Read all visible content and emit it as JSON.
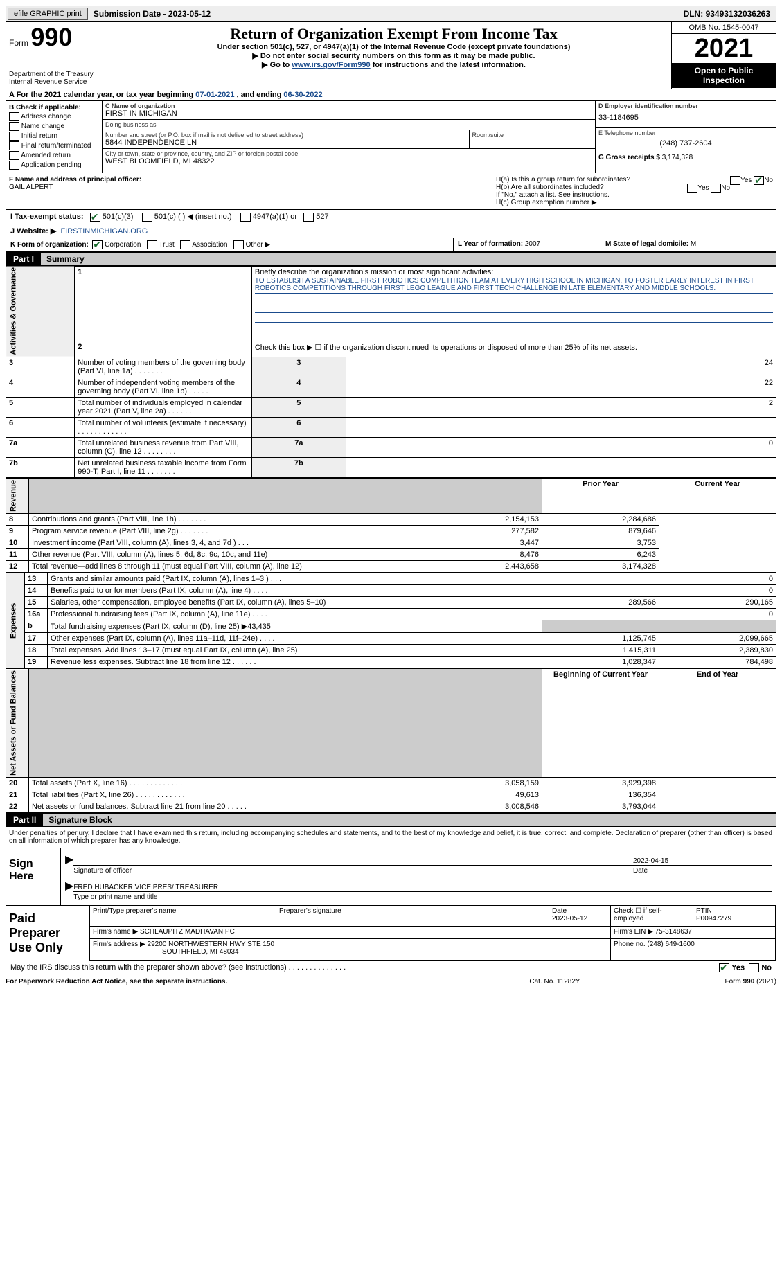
{
  "topbar": {
    "efile": "efile GRAPHIC print",
    "subdate_lbl": "Submission Date - ",
    "subdate": "2023-05-12",
    "dln_lbl": "DLN: ",
    "dln": "93493132036263"
  },
  "header": {
    "form_prefix": "Form",
    "form_no": "990",
    "title": "Return of Organization Exempt From Income Tax",
    "sub1": "Under section 501(c), 527, or 4947(a)(1) of the Internal Revenue Code (except private foundations)",
    "sub2": "▶ Do not enter social security numbers on this form as it may be made public.",
    "sub3a": "▶ Go to ",
    "sub3_link": "www.irs.gov/Form990",
    "sub3b": " for instructions and the latest information.",
    "dept": "Department of the Treasury\nInternal Revenue Service",
    "omb": "OMB No. 1545-0047",
    "year": "2021",
    "open": "Open to Public Inspection"
  },
  "row_a": {
    "text_a": "A For the 2021 calendar year, or tax year beginning ",
    "begin": "07-01-2021",
    "mid": " , and ending ",
    "end": "06-30-2022"
  },
  "col_b": {
    "title": "B Check if applicable:",
    "items": [
      "Address change",
      "Name change",
      "Initial return",
      "Final return/terminated",
      "Amended return",
      "Application pending"
    ]
  },
  "col_c": {
    "name_lbl": "C Name of organization",
    "name": "FIRST IN MICHIGAN",
    "dba_lbl": "Doing business as",
    "dba": "",
    "street_lbl": "Number and street (or P.O. box if mail is not delivered to street address)",
    "room_lbl": "Room/suite",
    "street": "5844 INDEPENDENCE LN",
    "city_lbl": "City or town, state or province, country, and ZIP or foreign postal code",
    "city": "WEST BLOOMFIELD, MI  48322"
  },
  "col_d": {
    "ein_lbl": "D Employer identification number",
    "ein": "33-1184695",
    "phone_lbl": "E Telephone number",
    "phone": "(248) 737-2604",
    "gross_lbl": "G Gross receipts $ ",
    "gross": "3,174,328"
  },
  "row_f": {
    "f_lbl": "F  Name and address of principal officer:",
    "f_val": "GAIL ALPERT",
    "ha": "H(a)  Is this a group return for subordinates?",
    "hb": "H(b)  Are all subordinates included?",
    "hb_note": "If \"No,\" attach a list. See instructions.",
    "hc": "H(c)  Group exemption number ▶",
    "yes": "Yes",
    "no": "No"
  },
  "row_i": {
    "lbl": "I   Tax-exempt status:",
    "o1": "501(c)(3)",
    "o2": "501(c) (  ) ◀ (insert no.)",
    "o3": "4947(a)(1) or",
    "o4": "527"
  },
  "row_j": {
    "lbl": "J   Website: ▶",
    "val": "FIRSTINMICHIGAN.ORG"
  },
  "row_k": {
    "k1_lbl": "K Form of organization:",
    "opts": [
      "Corporation",
      "Trust",
      "Association",
      "Other ▶"
    ],
    "l_lbl": "L Year of formation: ",
    "l_val": "2007",
    "m_lbl": "M State of legal domicile: ",
    "m_val": "MI"
  },
  "part1": {
    "title": "Summary",
    "q1_lbl": "Briefly describe the organization's mission or most significant activities:",
    "q1_val": "TO ESTABLISH A SUSTAINABLE FIRST ROBOTICS COMPETITION TEAM AT EVERY HIGH SCHOOL IN MICHIGAN. TO FOSTER EARLY INTEREST IN FIRST ROBOTICS COMPETITIONS THROUGH FIRST LEGO LEAGUE AND FIRST TECH CHALLENGE IN LATE ELEMENTARY AND MIDDLE SCHOOLS.",
    "q2": "Check this box ▶ ☐ if the organization discontinued its operations or disposed of more than 25% of its net assets.",
    "side_ag": "Activities & Governance",
    "side_rev": "Revenue",
    "side_exp": "Expenses",
    "side_na": "Net Assets or Fund Balances",
    "hdr_prior": "Prior Year",
    "hdr_curr": "Current Year",
    "hdr_boy": "Beginning of Current Year",
    "hdr_eoy": "End of Year",
    "lines_gov": [
      {
        "n": "3",
        "t": "Number of voting members of the governing body (Part VI, line 1a)  .    .    .    .    .    .    .",
        "v": "24"
      },
      {
        "n": "4",
        "t": "Number of independent voting members of the governing body (Part VI, line 1b)  .    .    .    .    .",
        "v": "22"
      },
      {
        "n": "5",
        "t": "Total number of individuals employed in calendar year 2021 (Part V, line 2a)  .    .    .    .    .    .",
        "v": "2"
      },
      {
        "n": "6",
        "t": "Total number of volunteers (estimate if necessary)   .    .    .    .    .    .    .    .    .    .    .    .",
        "v": ""
      },
      {
        "n": "7a",
        "t": "Total unrelated business revenue from Part VIII, column (C), line 12   .    .    .    .    .    .    .    .",
        "v": "0"
      },
      {
        "n": "7b",
        "t": "Net unrelated business taxable income from Form 990-T, Part I, line 11  .    .    .    .    .    .    .",
        "v": ""
      }
    ],
    "lines_rev": [
      {
        "n": "8",
        "t": "Contributions and grants (Part VIII, line 1h)   .    .    .    .    .    .    .",
        "p": "2,154,153",
        "c": "2,284,686"
      },
      {
        "n": "9",
        "t": "Program service revenue (Part VIII, line 2g)  .    .    .    .    .    .    .",
        "p": "277,582",
        "c": "879,646"
      },
      {
        "n": "10",
        "t": "Investment income (Part VIII, column (A), lines 3, 4, and 7d )   .    .    .",
        "p": "3,447",
        "c": "3,753"
      },
      {
        "n": "11",
        "t": "Other revenue (Part VIII, column (A), lines 5, 6d, 8c, 9c, 10c, and 11e)",
        "p": "8,476",
        "c": "6,243"
      },
      {
        "n": "12",
        "t": "Total revenue—add lines 8 through 11 (must equal Part VIII, column (A), line 12)",
        "p": "2,443,658",
        "c": "3,174,328"
      }
    ],
    "lines_exp": [
      {
        "n": "13",
        "t": "Grants and similar amounts paid (Part IX, column (A), lines 1–3 )  .    .    .",
        "p": "",
        "c": "0"
      },
      {
        "n": "14",
        "t": "Benefits paid to or for members (Part IX, column (A), line 4)  .    .    .    .",
        "p": "",
        "c": "0"
      },
      {
        "n": "15",
        "t": "Salaries, other compensation, employee benefits (Part IX, column (A), lines 5–10)",
        "p": "289,566",
        "c": "290,165"
      },
      {
        "n": "16a",
        "t": "Professional fundraising fees (Part IX, column (A), line 11e)  .    .    .    .",
        "p": "",
        "c": "0"
      },
      {
        "n": "b",
        "t": "Total fundraising expenses (Part IX, column (D), line 25) ▶43,435",
        "p": "shade",
        "c": "shade"
      },
      {
        "n": "17",
        "t": "Other expenses (Part IX, column (A), lines 11a–11d, 11f–24e)  .    .    .    .",
        "p": "1,125,745",
        "c": "2,099,665"
      },
      {
        "n": "18",
        "t": "Total expenses. Add lines 13–17 (must equal Part IX, column (A), line 25)",
        "p": "1,415,311",
        "c": "2,389,830"
      },
      {
        "n": "19",
        "t": "Revenue less expenses. Subtract line 18 from line 12  .    .    .    .    .    .",
        "p": "1,028,347",
        "c": "784,498"
      }
    ],
    "lines_na": [
      {
        "n": "20",
        "t": "Total assets (Part X, line 16)  .    .    .    .    .    .    .    .    .    .    .    .    .",
        "p": "3,058,159",
        "c": "3,929,398"
      },
      {
        "n": "21",
        "t": "Total liabilities (Part X, line 26)  .    .    .    .    .    .    .    .    .    .    .    .",
        "p": "49,613",
        "c": "136,354"
      },
      {
        "n": "22",
        "t": "Net assets or fund balances. Subtract line 21 from line 20  .    .    .    .    .",
        "p": "3,008,546",
        "c": "3,793,044"
      }
    ]
  },
  "part2": {
    "title": "Signature Block",
    "decl": "Under penalties of perjury, I declare that I have examined this return, including accompanying schedules and statements, and to the best of my knowledge and belief, it is true, correct, and complete. Declaration of preparer (other than officer) is based on all information of which preparer has any knowledge.",
    "sign_here": "Sign Here",
    "sig_officer": "Signature of officer",
    "sig_date": "2022-04-15",
    "date_lbl": "Date",
    "officer_name": "FRED HUBACKER  VICE PRES/ TREASURER",
    "type_name_lbl": "Type or print name and title",
    "paid_prep": "Paid Preparer Use Only",
    "pp_name_lbl": "Print/Type preparer's name",
    "pp_sig_lbl": "Preparer's signature",
    "pp_date_lbl": "Date",
    "pp_date": "2023-05-12",
    "pp_check_lbl": "Check ☐ if self-employed",
    "ptin_lbl": "PTIN",
    "ptin": "P00947279",
    "firm_name_lbl": "Firm's name    ▶ ",
    "firm_name": "SCHLAUPITZ MADHAVAN PC",
    "firm_ein_lbl": "Firm's EIN ▶ ",
    "firm_ein": "75-3148637",
    "firm_addr_lbl": "Firm's address ▶ ",
    "firm_addr1": "29200 NORTHWESTERN HWY STE 150",
    "firm_addr2": "SOUTHFIELD, MI  48034",
    "firm_phone_lbl": "Phone no. ",
    "firm_phone": "(248) 649-1600",
    "discuss": "May the IRS discuss this return with the preparer shown above? (see instructions)   .    .    .    .    .    .    .    .    .    .    .    .    .    .",
    "yes": "Yes",
    "no": "No"
  },
  "footer": {
    "f1": "For Paperwork Reduction Act Notice, see the separate instructions.",
    "f2": "Cat. No. 11282Y",
    "f3": "Form 990 (2021)"
  }
}
